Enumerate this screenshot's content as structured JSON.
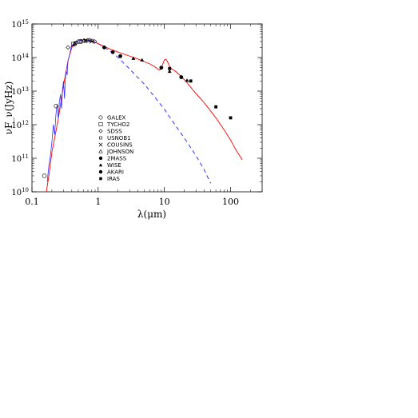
{
  "chart_data": {
    "type": "scatter",
    "title": "",
    "xlabel": "λ(μm)",
    "ylabel": "νF_ν(JyHz)",
    "x_scale": "log",
    "y_scale": "log",
    "xlim": [
      0.1,
      300
    ],
    "ylim": [
      10000000000.0,
      1000000000000000.0
    ],
    "grid": false,
    "legend_placement": "center",
    "colors": {
      "model_total": "#ff0000",
      "model_photosphere": "#3333ff",
      "spectrum": "#3333ff",
      "points": "#000000"
    },
    "x_ticks": [
      {
        "value": 0.1,
        "label": "0.1"
      },
      {
        "value": 1,
        "label": "1"
      },
      {
        "value": 10,
        "label": "10"
      },
      {
        "value": 100,
        "label": "100"
      }
    ],
    "y_ticks": [
      {
        "exp": 10,
        "base": "10",
        "sup": "10"
      },
      {
        "exp": 11,
        "base": "10",
        "sup": "11"
      },
      {
        "exp": 12,
        "base": "10",
        "sup": "12"
      },
      {
        "exp": 13,
        "base": "10",
        "sup": "13"
      },
      {
        "exp": 14,
        "base": "10",
        "sup": "14"
      },
      {
        "exp": 15,
        "base": "10",
        "sup": "15"
      }
    ],
    "legend": [
      {
        "name": "GALEX",
        "marker": "circle-open"
      },
      {
        "name": "TYCHO2",
        "marker": "square-open"
      },
      {
        "name": "SDSS",
        "marker": "diamond-open"
      },
      {
        "name": "USNOB1",
        "marker": "square-small"
      },
      {
        "name": "COUSINS",
        "marker": "cross"
      },
      {
        "name": "JOHNSON",
        "marker": "triangle-open"
      },
      {
        "name": "2MASS",
        "marker": "circle-filled"
      },
      {
        "name": "WISE",
        "marker": "triangle-filled"
      },
      {
        "name": "AKARI",
        "marker": "circle-filled"
      },
      {
        "name": "IRAS",
        "marker": "square-filled"
      }
    ],
    "series": [
      {
        "marker": "circle-open",
        "x": [
          0.154,
          0.231
        ],
        "y": [
          30000000000.0,
          3600000000000.0
        ]
      },
      {
        "marker": "square-open",
        "x": [
          0.42,
          0.53
        ],
        "y": [
          250000000000000.0,
          300000000000000.0
        ]
      },
      {
        "marker": "diamond-open",
        "x": [
          0.35,
          0.47,
          0.62,
          0.75,
          0.89
        ],
        "y": [
          200000000000000.0,
          280000000000000.0,
          320000000000000.0,
          330000000000000.0,
          300000000000000.0
        ]
      },
      {
        "marker": "square-small",
        "x": [
          0.45,
          0.65,
          0.8
        ],
        "y": [
          270000000000000.0,
          310000000000000.0,
          320000000000000.0
        ]
      },
      {
        "marker": "cross",
        "x": [
          0.64,
          0.8
        ],
        "y": [
          320000000000000.0,
          300000000000000.0
        ]
      },
      {
        "marker": "triangle-open",
        "x": [
          0.44,
          0.55,
          0.7
        ],
        "y": [
          260000000000000.0,
          310000000000000.0,
          330000000000000.0
        ]
      },
      {
        "marker": "circle-filled",
        "x": [
          1.235,
          1.662,
          2.159
        ],
        "y": [
          200000000000000.0,
          145000000000000.0,
          110000000000000.0
        ]
      },
      {
        "marker": "triangle-filled",
        "x": [
          3.4,
          4.6,
          12,
          22
        ],
        "y": [
          95000000000000.0,
          85000000000000.0,
          39000000000000.0,
          21000000000000.0
        ]
      },
      {
        "marker": "circle-filled",
        "x": [
          9,
          18
        ],
        "y": [
          50000000000000.0,
          26000000000000.0
        ]
      },
      {
        "marker": "square-filled",
        "x": [
          12,
          25,
          60,
          100
        ],
        "y": [
          47000000000000.0,
          20000000000000.0,
          3400000000000.0,
          1600000000000.0
        ]
      }
    ],
    "model_total": {
      "x": [
        0.165,
        0.18,
        0.2,
        0.25,
        0.3,
        0.35,
        0.4,
        0.45,
        0.5,
        0.6,
        0.7,
        0.8,
        1.0,
        1.2,
        1.5,
        2.0,
        3.0,
        4.0,
        5.0,
        6.0,
        7.0,
        8.0,
        8.5,
        9.0,
        9.5,
        10.0,
        10.5,
        11.0,
        11.5,
        12.0,
        13.0,
        15.0,
        18.0,
        22.0,
        25.0,
        30.0,
        40.0,
        60.0,
        80.0,
        100.0,
        120.0,
        150.0
      ],
      "y": [
        10000000000.0,
        30000000000.0,
        150000000000.0,
        1500000000000.0,
        15000000000000.0,
        80000000000000.0,
        200000000000000.0,
        280000000000000.0,
        320000000000000.0,
        340000000000000.0,
        330000000000000.0,
        310000000000000.0,
        260000000000000.0,
        220000000000000.0,
        180000000000000.0,
        145000000000000.0,
        110000000000000.0,
        90000000000000.0,
        75000000000000.0,
        65000000000000.0,
        55000000000000.0,
        45000000000000.0,
        42000000000000.0,
        48000000000000.0,
        65000000000000.0,
        85000000000000.0,
        90000000000000.0,
        80000000000000.0,
        65000000000000.0,
        55000000000000.0,
        45000000000000.0,
        38000000000000.0,
        27000000000000.0,
        18000000000000.0,
        13000000000000.0,
        8500000000000.0,
        4500000000000.0,
        1600000000000.0,
        700000000000.0,
        350000000000.0,
        180000000000.0,
        90000000000.0
      ]
    },
    "model_photosphere": {
      "x": [
        1.0,
        1.5,
        2.0,
        3.0,
        4.0,
        5.0,
        7.0,
        10.0,
        15.0,
        20.0,
        30.0,
        40.0,
        50.0
      ],
      "y": [
        260000000000000.0,
        160000000000000.0,
        100000000000000.0,
        45000000000000.0,
        25000000000000.0,
        16000000000000.0,
        7000000000000.0,
        2900000000000.0,
        900000000000.0,
        400000000000.0,
        120000000000.0,
        45000000000.0,
        18000000000.0
      ]
    },
    "spectrum": {
      "x": [
        0.17,
        0.18,
        0.19,
        0.2,
        0.21,
        0.22,
        0.23,
        0.24,
        0.25,
        0.26,
        0.27,
        0.28,
        0.29,
        0.3,
        0.31,
        0.32,
        0.33,
        0.34,
        0.35,
        0.37,
        0.39,
        0.41,
        0.43,
        0.45,
        0.48,
        0.52,
        0.56,
        0.6,
        0.65,
        0.7,
        0.75,
        0.8,
        0.85,
        0.9
      ],
      "y": [
        20000000000.0,
        60000000000.0,
        120000000000.0,
        300000000000.0,
        1000000000000.0,
        500000000000.0,
        2000000000000.0,
        4000000000000.0,
        1500000000000.0,
        5000000000000.0,
        8000000000000.0,
        3000000000000.0,
        12000000000000.0,
        20000000000000.0,
        6000000000000.0,
        25000000000000.0,
        40000000000000.0,
        30000000000000.0,
        80000000000000.0,
        120000000000000.0,
        200000000000000.0,
        240000000000000.0,
        220000000000000.0,
        280000000000000.0,
        300000000000000.0,
        330000000000000.0,
        310000000000000.0,
        350000000000000.0,
        340000000000000.0,
        320000000000000.0,
        330000000000000.0,
        300000000000000.0,
        310000000000000.0,
        290000000000000.0
      ]
    }
  }
}
